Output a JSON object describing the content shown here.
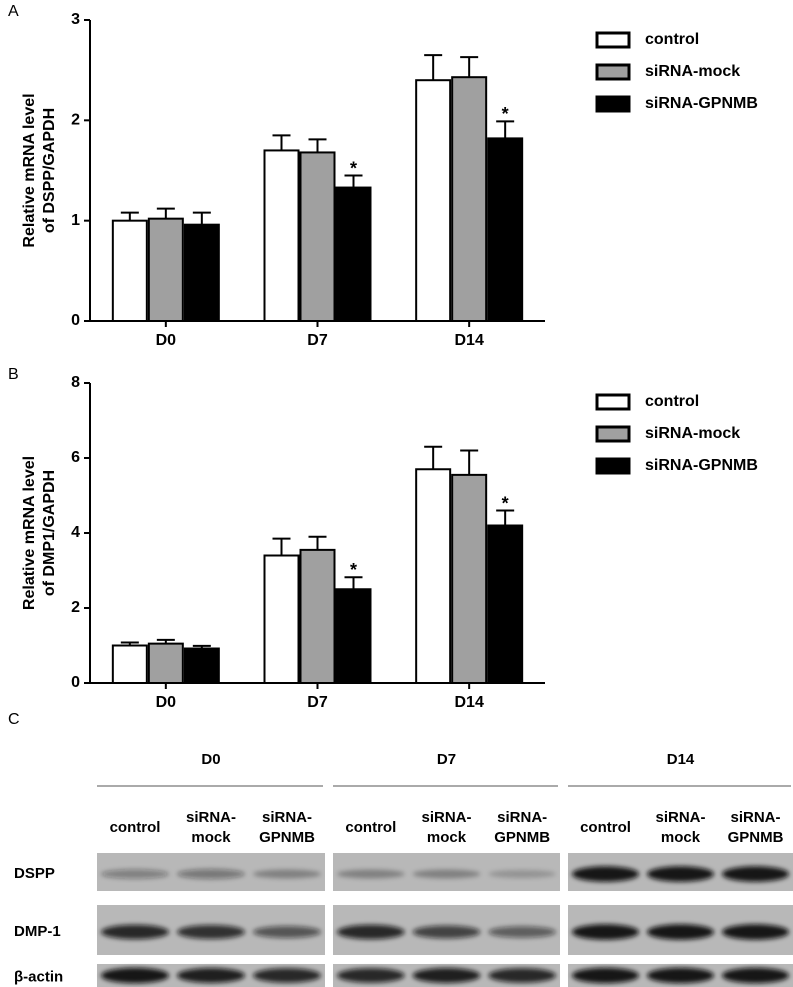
{
  "chart_data": [
    {
      "type": "bar",
      "panel_label": "A",
      "ylabel": [
        "Relative mRNA level",
        "of DSPP/GAPDH"
      ],
      "categories": [
        "D0",
        "D7",
        "D14"
      ],
      "series": [
        {
          "name": "control",
          "color": "#ffffff",
          "values": [
            1.0,
            1.7,
            2.4
          ],
          "errors": [
            0.08,
            0.15,
            0.25
          ]
        },
        {
          "name": "siRNA-mock",
          "color": "#a0a0a0",
          "values": [
            1.02,
            1.68,
            2.43
          ],
          "errors": [
            0.1,
            0.13,
            0.2
          ]
        },
        {
          "name": "siRNA-GPNMB",
          "color": "#000000",
          "values": [
            0.96,
            1.33,
            1.82
          ],
          "errors": [
            0.12,
            0.12,
            0.17
          ],
          "labels": [
            null,
            "*",
            "*"
          ]
        }
      ],
      "ylim": [
        0,
        3
      ],
      "yticks": [
        0,
        1,
        2,
        3
      ],
      "legend": "right"
    },
    {
      "type": "bar",
      "panel_label": "B",
      "ylabel": [
        "Relative mRNA level",
        "of DMP1/GAPDH"
      ],
      "categories": [
        "D0",
        "D7",
        "D14"
      ],
      "series": [
        {
          "name": "control",
          "color": "#ffffff",
          "values": [
            1.0,
            3.4,
            5.7
          ],
          "errors": [
            0.08,
            0.45,
            0.6
          ]
        },
        {
          "name": "siRNA-mock",
          "color": "#a0a0a0",
          "values": [
            1.05,
            3.55,
            5.55
          ],
          "errors": [
            0.1,
            0.35,
            0.65
          ]
        },
        {
          "name": "siRNA-GPNMB",
          "color": "#000000",
          "values": [
            0.92,
            2.5,
            4.2
          ],
          "errors": [
            0.07,
            0.32,
            0.4
          ],
          "labels": [
            null,
            "*",
            "*"
          ]
        }
      ],
      "ylim": [
        0,
        8
      ],
      "yticks": [
        0,
        2,
        4,
        6,
        8
      ],
      "legend": "right"
    }
  ],
  "blot": {
    "panel_label": "C",
    "groups": [
      {
        "name": "D0",
        "lanes": [
          [
            "control"
          ],
          [
            "siRNA-",
            "mock"
          ],
          [
            "siRNA-",
            "GPNMB"
          ]
        ]
      },
      {
        "name": "D7",
        "lanes": [
          [
            "control"
          ],
          [
            "siRNA-",
            "mock"
          ],
          [
            "siRNA-",
            "GPNMB"
          ]
        ]
      },
      {
        "name": "D14",
        "lanes": [
          [
            "control"
          ],
          [
            "siRNA-",
            "mock"
          ],
          [
            "siRNA-",
            "GPNMB"
          ]
        ]
      }
    ],
    "rows": [
      "DSPP",
      "DMP-1",
      "β-actin"
    ]
  }
}
